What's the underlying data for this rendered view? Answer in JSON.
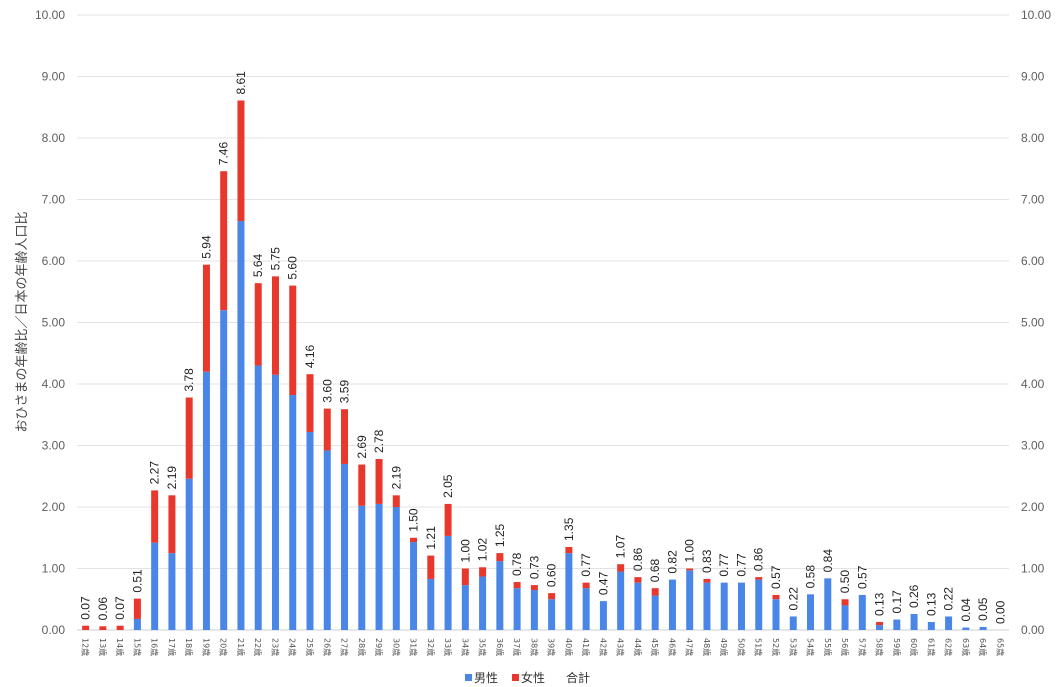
{
  "chart_data": {
    "type": "bar",
    "stacked": true,
    "ylabel": "おひさまの年齢比／日本の年齢人口比",
    "ylim": [
      0,
      10
    ],
    "yticks": [
      "0.00",
      "1.00",
      "2.00",
      "3.00",
      "4.00",
      "5.00",
      "6.00",
      "7.00",
      "8.00",
      "9.00",
      "10.00"
    ],
    "secondary_axis": true,
    "grid": true,
    "legend_position": "bottom",
    "categories": [
      "12歳",
      "13歳",
      "14歳",
      "15歳",
      "16歳",
      "17歳",
      "18歳",
      "19歳",
      "20歳",
      "21歳",
      "22歳",
      "23歳",
      "24歳",
      "25歳",
      "26歳",
      "27歳",
      "28歳",
      "29歳",
      "30歳",
      "31歳",
      "32歳",
      "33歳",
      "34歳",
      "35歳",
      "36歳",
      "37歳",
      "38歳",
      "39歳",
      "40歳",
      "41歳",
      "42歳",
      "43歳",
      "44歳",
      "45歳",
      "46歳",
      "47歳",
      "48歳",
      "49歳",
      "50歳",
      "51歳",
      "52歳",
      "53歳",
      "54歳",
      "55歳",
      "56歳",
      "57歳",
      "58歳",
      "59歳",
      "60歳",
      "61歳",
      "62歳",
      "63歳",
      "64歳",
      "65歳"
    ],
    "series": [
      {
        "name": "男性",
        "color": "#4a86e8",
        "values": [
          0,
          0,
          0,
          0.18,
          1.42,
          1.25,
          2.46,
          4.2,
          5.2,
          6.65,
          4.3,
          4.15,
          3.82,
          3.22,
          2.92,
          2.7,
          2.02,
          2.05,
          2.0,
          1.43,
          0.83,
          1.53,
          0.73,
          0.87,
          1.12,
          0.68,
          0.65,
          0.5,
          1.25,
          0.68,
          0.47,
          0.95,
          0.77,
          0.56,
          0.82,
          0.97,
          0.77,
          0.77,
          0.77,
          0.82,
          0.5,
          0.22,
          0.58,
          0.84,
          0.4,
          0.57,
          0.08,
          0.17,
          0.26,
          0.13,
          0.22,
          0.04,
          0.05,
          0
        ]
      },
      {
        "name": "女性",
        "color": "#e8382d",
        "values": [
          0.07,
          0.06,
          0.07,
          0.33,
          0.85,
          0.94,
          1.32,
          1.74,
          2.26,
          1.96,
          1.34,
          1.6,
          1.78,
          0.94,
          0.68,
          0.89,
          0.67,
          0.73,
          0.19,
          0.07,
          0.38,
          0.52,
          0.27,
          0.15,
          0.13,
          0.1,
          0.08,
          0.1,
          0.1,
          0.09,
          0,
          0.12,
          0.09,
          0.12,
          0,
          0.03,
          0.06,
          0,
          0,
          0.04,
          0.07,
          0,
          0,
          0,
          0.1,
          0,
          0.05,
          0,
          0,
          0,
          0,
          0,
          0,
          0
        ]
      },
      {
        "name": "合計",
        "values": [
          0.07,
          0.06,
          0.07,
          0.51,
          2.27,
          2.19,
          3.78,
          5.94,
          7.46,
          8.61,
          5.64,
          5.75,
          5.6,
          4.16,
          3.6,
          3.59,
          2.69,
          2.78,
          2.19,
          1.5,
          1.21,
          2.05,
          1.0,
          1.02,
          1.25,
          0.78,
          0.73,
          0.6,
          1.35,
          0.77,
          0.47,
          1.07,
          0.86,
          0.68,
          0.82,
          1.0,
          0.83,
          0.77,
          0.77,
          0.86,
          0.57,
          0.22,
          0.58,
          0.84,
          0.5,
          0.57,
          0.13,
          0.17,
          0.26,
          0.13,
          0.22,
          0.04,
          0.05,
          0.0
        ],
        "labels": [
          "0.07",
          "0.06",
          "0.07",
          "0.51",
          "2.27",
          "2.19",
          "3.78",
          "5.94",
          "7.46",
          "8.61",
          "5.64",
          "5.75",
          "5.60",
          "4.16",
          "3.60",
          "3.59",
          "2.69",
          "2.78",
          "2.19",
          "1.50",
          "1.21",
          "2.05",
          "1.00",
          "1.02",
          "1.25",
          "0.78",
          "0.73",
          "0.60",
          "1.35",
          "0.77",
          "0.47",
          "1.07",
          "0.86",
          "0.68",
          "0.82",
          "1.00",
          "0.83",
          "0.77",
          "0.77",
          "0.86",
          "0.57",
          "0.22",
          "0.58",
          "0.84",
          "0.50",
          "0.57",
          "0.13",
          "0.17",
          "0.26",
          "0.13",
          "0.22",
          "0.04",
          "0.05",
          "0.00"
        ]
      }
    ]
  },
  "legend": {
    "male_label": "男性",
    "female_label": "女性",
    "total_label": "合計"
  }
}
